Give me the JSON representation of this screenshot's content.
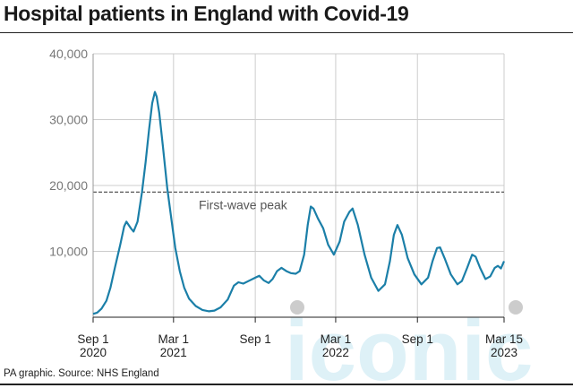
{
  "title": "Hospital patients in England with Covid-19",
  "source": "PA graphic. Source: NHS England",
  "watermark": "iconic",
  "colors": {
    "line": "#1b7fa8",
    "grid": "#cccccc",
    "peak_line": "#555555",
    "watermark": "#d9eff6"
  },
  "chart_data": {
    "type": "line",
    "title": "Hospital patients in England with Covid-19",
    "xlabel": "",
    "ylabel": "",
    "xlim": [
      "2020-09-01",
      "2023-03-15"
    ],
    "ylim": [
      0,
      40000
    ],
    "y_ticks": [
      {
        "value": 10000,
        "label": "10,000"
      },
      {
        "value": 20000,
        "label": "20,000"
      },
      {
        "value": 30000,
        "label": "30,000"
      },
      {
        "value": 40000,
        "label": "40,000"
      }
    ],
    "x_ticks": [
      {
        "date": "2020-09-01",
        "line1": "Sep 1",
        "line2": "2020"
      },
      {
        "date": "2021-03-01",
        "line1": "Mar 1",
        "line2": "2021"
      },
      {
        "date": "2021-09-01",
        "line1": "Sep 1",
        "line2": ""
      },
      {
        "date": "2022-03-01",
        "line1": "Mar 1",
        "line2": "2022"
      },
      {
        "date": "2022-09-01",
        "line1": "Sep 1",
        "line2": ""
      },
      {
        "date": "2023-03-15",
        "line1": "Mar 15",
        "line2": "2023"
      }
    ],
    "grid": true,
    "reference_line": {
      "value": 19000,
      "label": "First-wave peak"
    },
    "series": [
      {
        "values": [
          [
            "2020-09-01",
            500
          ],
          [
            "2020-09-10",
            700
          ],
          [
            "2020-09-20",
            1300
          ],
          [
            "2020-10-01",
            2500
          ],
          [
            "2020-10-10",
            4500
          ],
          [
            "2020-10-20",
            7500
          ],
          [
            "2020-11-01",
            11000
          ],
          [
            "2020-11-10",
            13800
          ],
          [
            "2020-11-15",
            14500
          ],
          [
            "2020-11-20",
            14000
          ],
          [
            "2020-11-25",
            13500
          ],
          [
            "2020-12-01",
            13000
          ],
          [
            "2020-12-10",
            14500
          ],
          [
            "2020-12-20",
            19000
          ],
          [
            "2020-12-28",
            23500
          ],
          [
            "2021-01-05",
            28500
          ],
          [
            "2021-01-12",
            32500
          ],
          [
            "2021-01-18",
            34200
          ],
          [
            "2021-01-22",
            33500
          ],
          [
            "2021-01-28",
            31000
          ],
          [
            "2021-02-05",
            26000
          ],
          [
            "2021-02-15",
            19500
          ],
          [
            "2021-02-25",
            14500
          ],
          [
            "2021-03-05",
            10500
          ],
          [
            "2021-03-15",
            7000
          ],
          [
            "2021-03-25",
            4500
          ],
          [
            "2021-04-05",
            2800
          ],
          [
            "2021-04-20",
            1700
          ],
          [
            "2021-05-05",
            1100
          ],
          [
            "2021-05-20",
            900
          ],
          [
            "2021-06-01",
            1000
          ],
          [
            "2021-06-15",
            1500
          ],
          [
            "2021-07-01",
            2700
          ],
          [
            "2021-07-15",
            4800
          ],
          [
            "2021-07-25",
            5300
          ],
          [
            "2021-08-05",
            5100
          ],
          [
            "2021-08-20",
            5600
          ],
          [
            "2021-09-01",
            6000
          ],
          [
            "2021-09-10",
            6300
          ],
          [
            "2021-09-20",
            5600
          ],
          [
            "2021-10-01",
            5200
          ],
          [
            "2021-10-10",
            5800
          ],
          [
            "2021-10-20",
            7000
          ],
          [
            "2021-10-30",
            7500
          ],
          [
            "2021-11-10",
            7000
          ],
          [
            "2021-11-20",
            6700
          ],
          [
            "2021-12-01",
            6600
          ],
          [
            "2021-12-10",
            7000
          ],
          [
            "2021-12-20",
            9500
          ],
          [
            "2021-12-28",
            14000
          ],
          [
            "2022-01-04",
            16800
          ],
          [
            "2022-01-10",
            16500
          ],
          [
            "2022-01-20",
            15000
          ],
          [
            "2022-02-01",
            13500
          ],
          [
            "2022-02-12",
            11000
          ],
          [
            "2022-02-25",
            9500
          ],
          [
            "2022-03-10",
            11500
          ],
          [
            "2022-03-20",
            14500
          ],
          [
            "2022-04-01",
            16000
          ],
          [
            "2022-04-08",
            16500
          ],
          [
            "2022-04-20",
            14000
          ],
          [
            "2022-05-05",
            9500
          ],
          [
            "2022-05-20",
            6000
          ],
          [
            "2022-06-05",
            4000
          ],
          [
            "2022-06-20",
            5000
          ],
          [
            "2022-07-01",
            8500
          ],
          [
            "2022-07-10",
            12500
          ],
          [
            "2022-07-18",
            14000
          ],
          [
            "2022-07-28",
            12500
          ],
          [
            "2022-08-10",
            9000
          ],
          [
            "2022-08-25",
            6500
          ],
          [
            "2022-09-10",
            5000
          ],
          [
            "2022-09-25",
            6000
          ],
          [
            "2022-10-05",
            8500
          ],
          [
            "2022-10-15",
            10500
          ],
          [
            "2022-10-22",
            10600
          ],
          [
            "2022-11-01",
            9000
          ],
          [
            "2022-11-15",
            6500
          ],
          [
            "2022-11-30",
            5000
          ],
          [
            "2022-12-10",
            5500
          ],
          [
            "2022-12-22",
            7500
          ],
          [
            "2023-01-02",
            9500
          ],
          [
            "2023-01-10",
            9200
          ],
          [
            "2023-01-20",
            7500
          ],
          [
            "2023-02-01",
            5800
          ],
          [
            "2023-02-12",
            6200
          ],
          [
            "2023-02-22",
            7500
          ],
          [
            "2023-03-01",
            7800
          ],
          [
            "2023-03-08",
            7400
          ],
          [
            "2023-03-15",
            8500
          ]
        ]
      }
    ]
  }
}
